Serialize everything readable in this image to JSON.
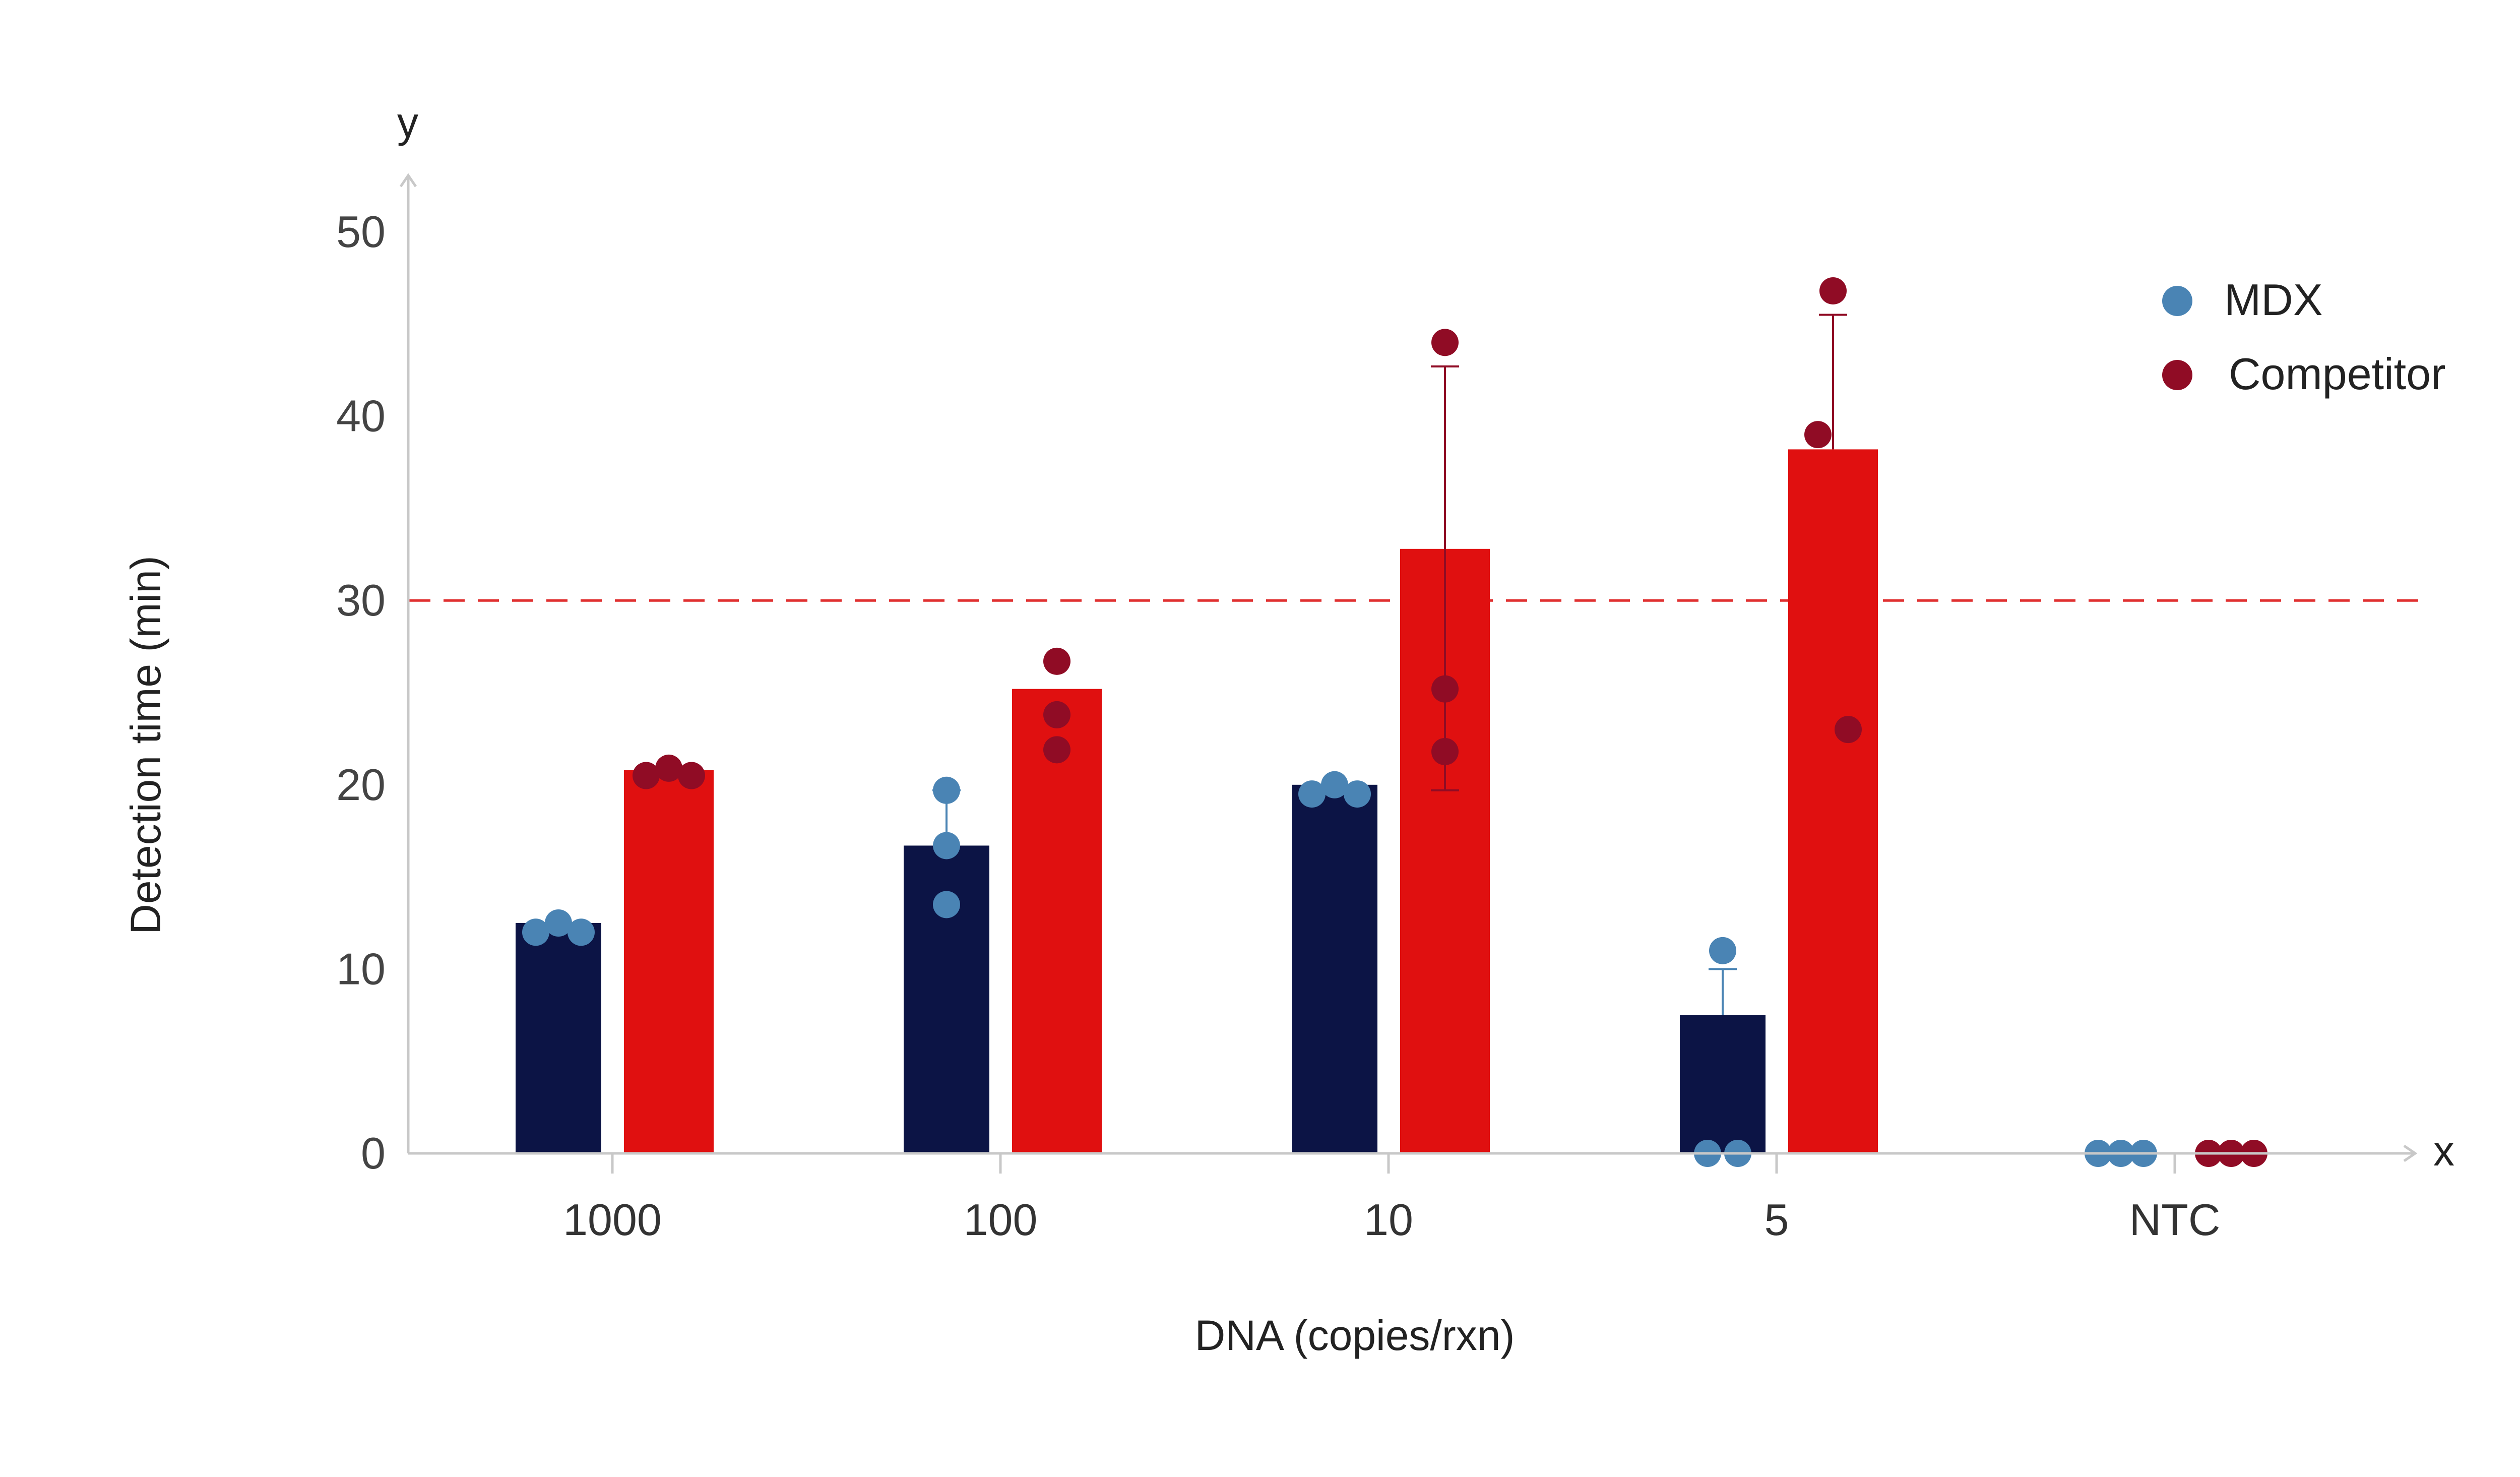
{
  "chart_data": {
    "type": "bar",
    "xlabel": "DNA (copies/rxn)",
    "ylabel": "Detection time (min)",
    "x_axis_letter": "x",
    "y_axis_letter": "y",
    "ylim": [
      0,
      53
    ],
    "yticks": [
      0,
      10,
      20,
      30,
      40,
      50
    ],
    "threshold": 30,
    "categories": [
      "1000",
      "100",
      "10",
      "5",
      "NTC"
    ],
    "legend_position": "top-right",
    "series": [
      {
        "name": "MDX",
        "bar_color": "#0c1445",
        "dot_color": "#4a84b4",
        "values": [
          12.5,
          16.7,
          20,
          7.5,
          null
        ],
        "error_high": [
          null,
          19.7,
          null,
          10,
          null
        ],
        "points": [
          [
            12,
            12.5,
            12
          ],
          [
            19.7,
            16.7,
            13.5
          ],
          [
            19.5,
            20,
            19.5
          ],
          [
            11,
            0,
            0
          ],
          [
            0,
            0,
            0
          ]
        ]
      },
      {
        "name": "Competitor",
        "bar_color": "#e01010",
        "dot_color": "#900c25",
        "values": [
          20.8,
          25.2,
          32.8,
          38.2,
          null
        ],
        "error_high": [
          null,
          null,
          42.7,
          45.5,
          null
        ],
        "error_low": [
          null,
          null,
          19.7,
          null,
          null
        ],
        "points": [
          [
            20.5,
            20.9,
            20.5
          ],
          [
            26.7,
            23.8,
            21.9
          ],
          [
            44,
            25.2,
            21.8
          ],
          [
            46.8,
            39,
            23
          ],
          [
            0,
            0,
            0
          ]
        ]
      }
    ]
  }
}
